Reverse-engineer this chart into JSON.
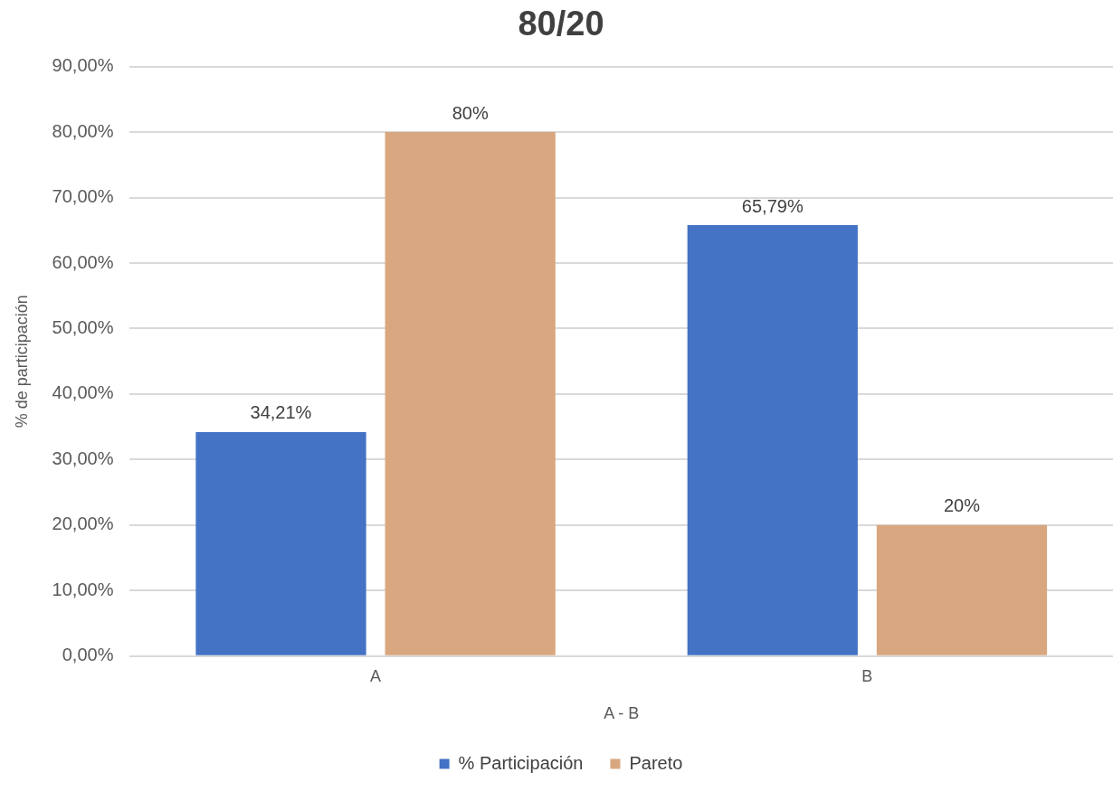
{
  "chart_data": {
    "type": "bar",
    "title": "80/20",
    "xlabel": "A - B",
    "ylabel": "% de participación",
    "categories": [
      "A",
      "B"
    ],
    "series": [
      {
        "name": "% Participación",
        "color": "#4472c4",
        "values": [
          34.21,
          65.79
        ],
        "value_labels": [
          "34,21%",
          "65,79%"
        ]
      },
      {
        "name": "Pareto",
        "color": "#d9a77f",
        "values": [
          80,
          20
        ],
        "value_labels": [
          "80%",
          "20%"
        ]
      }
    ],
    "ylim": [
      0,
      90
    ],
    "yticks": [
      {
        "value": 0,
        "label": "0,00%"
      },
      {
        "value": 10,
        "label": "10,00%"
      },
      {
        "value": 20,
        "label": "20,00%"
      },
      {
        "value": 30,
        "label": "30,00%"
      },
      {
        "value": 40,
        "label": "40,00%"
      },
      {
        "value": 50,
        "label": "50,00%"
      },
      {
        "value": 60,
        "label": "60,00%"
      },
      {
        "value": 70,
        "label": "70,00%"
      },
      {
        "value": 80,
        "label": "80,00%"
      },
      {
        "value": 90,
        "label": "90,00%"
      }
    ],
    "grid": "y",
    "legend": "bottom"
  }
}
